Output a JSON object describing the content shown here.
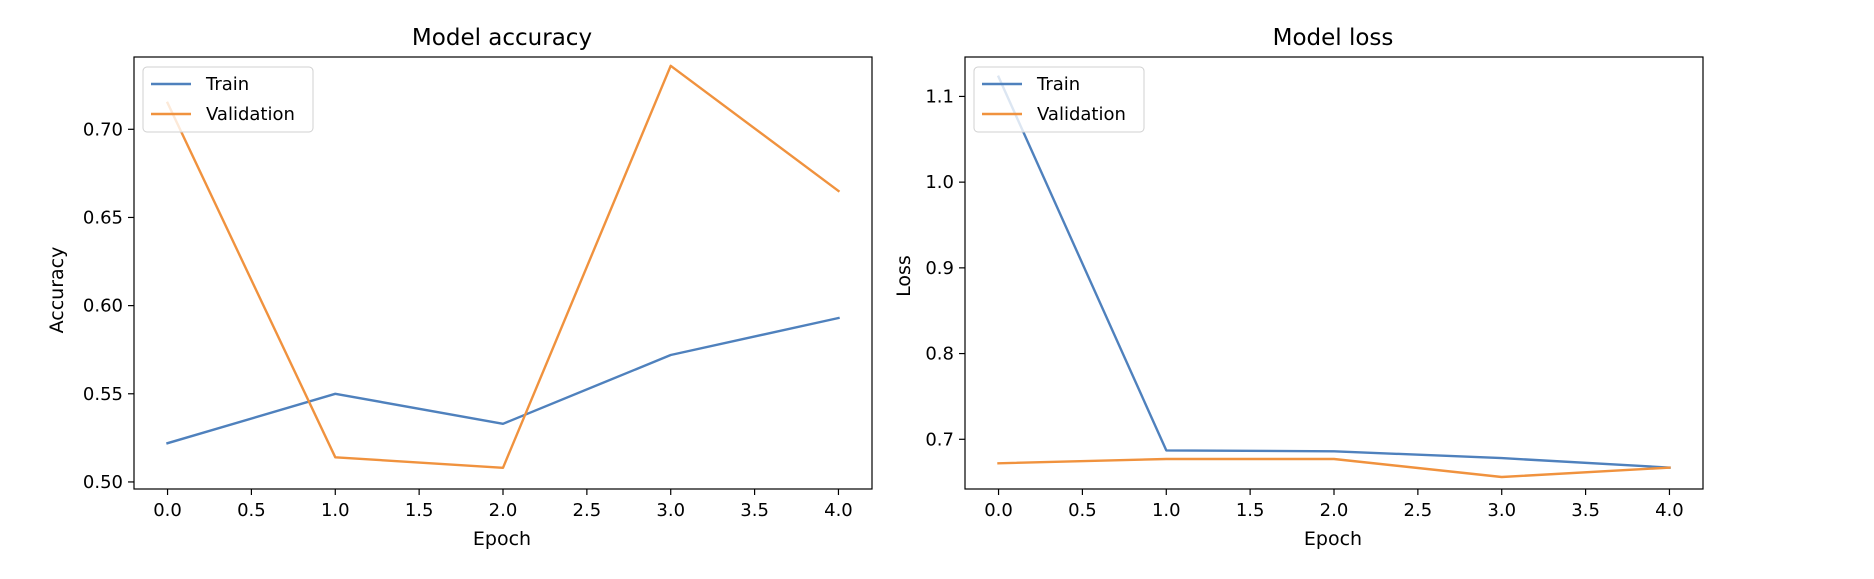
{
  "chart_data": [
    {
      "type": "line",
      "title": "Model accuracy",
      "xlabel": "Epoch",
      "ylabel": "Accuracy",
      "x": [
        0,
        1,
        2,
        3,
        4
      ],
      "xlim": [
        -0.2,
        4.2
      ],
      "ylim": [
        0.496,
        0.741
      ],
      "xticks": [
        0.0,
        0.5,
        1.0,
        1.5,
        2.0,
        2.5,
        3.0,
        3.5,
        4.0
      ],
      "xtick_labels": [
        "0.0",
        "0.5",
        "1.0",
        "1.5",
        "2.0",
        "2.5",
        "3.0",
        "3.5",
        "4.0"
      ],
      "yticks": [
        0.5,
        0.55,
        0.6,
        0.65,
        0.7
      ],
      "ytick_labels": [
        "0.50",
        "0.55",
        "0.60",
        "0.65",
        "0.70"
      ],
      "grid": false,
      "legend_position": "top-left",
      "series": [
        {
          "name": "Train",
          "color": "#4f81bd",
          "values": [
            0.522,
            0.55,
            0.533,
            0.572,
            0.593
          ]
        },
        {
          "name": "Validation",
          "color": "#f0923e",
          "values": [
            0.715,
            0.514,
            0.508,
            0.736,
            0.665
          ]
        }
      ]
    },
    {
      "type": "line",
      "title": "Model loss",
      "xlabel": "Epoch",
      "ylabel": "Loss",
      "x": [
        0,
        1,
        2,
        3,
        4
      ],
      "xlim": [
        -0.2,
        4.2
      ],
      "ylim": [
        0.642,
        1.146
      ],
      "xticks": [
        0.0,
        0.5,
        1.0,
        1.5,
        2.0,
        2.5,
        3.0,
        3.5,
        4.0
      ],
      "xtick_labels": [
        "0.0",
        "0.5",
        "1.0",
        "1.5",
        "2.0",
        "2.5",
        "3.0",
        "3.5",
        "4.0"
      ],
      "yticks": [
        0.7,
        0.8,
        0.9,
        1.0,
        1.1
      ],
      "ytick_labels": [
        "0.7",
        "0.8",
        "0.9",
        "1.0",
        "1.1"
      ],
      "grid": false,
      "legend_position": "top-left",
      "series": [
        {
          "name": "Train",
          "color": "#4f81bd",
          "values": [
            1.123,
            0.687,
            0.686,
            0.678,
            0.667
          ]
        },
        {
          "name": "Validation",
          "color": "#f0923e",
          "values": [
            0.672,
            0.677,
            0.677,
            0.656,
            0.667
          ]
        }
      ]
    }
  ]
}
